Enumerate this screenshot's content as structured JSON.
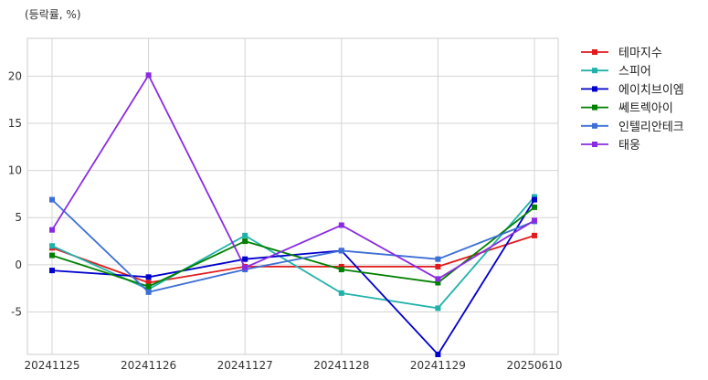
{
  "chart_data": {
    "type": "line",
    "title": "",
    "ylabel": "(등락률, %)",
    "xlabel": "",
    "categories": [
      "20241125",
      "20241126",
      "20241127",
      "20241128",
      "20241129",
      "20250610"
    ],
    "ylim": [
      -9.5,
      24
    ],
    "yticks": [
      -5,
      0,
      5,
      10,
      15,
      20
    ],
    "grid": true,
    "legend_position": "outside-right",
    "series": [
      {
        "name": "테마지수",
        "color": "#e31a1c",
        "values": [
          1.8,
          -1.9,
          -0.2,
          -0.2,
          -0.2,
          3.1
        ]
      },
      {
        "name": "스피어",
        "color": "#20b2aa",
        "values": [
          2.0,
          -2.6,
          3.1,
          -3.0,
          -4.6,
          7.2
        ]
      },
      {
        "name": "에이치브이엠",
        "color": "#0000cd",
        "values": [
          -0.6,
          -1.3,
          0.6,
          1.5,
          -9.5,
          6.9
        ]
      },
      {
        "name": "쎄트렉아이",
        "color": "#008000",
        "values": [
          1.0,
          -2.3,
          2.5,
          -0.5,
          -1.9,
          6.1
        ]
      },
      {
        "name": "인텔리안테크",
        "color": "#3c6fd6",
        "values": [
          6.9,
          -2.9,
          -0.5,
          1.5,
          0.6,
          4.6
        ]
      },
      {
        "name": "태웅",
        "color": "#8a2be2",
        "values": [
          3.7,
          20.1,
          -0.3,
          4.2,
          -1.5,
          4.7
        ]
      }
    ]
  }
}
